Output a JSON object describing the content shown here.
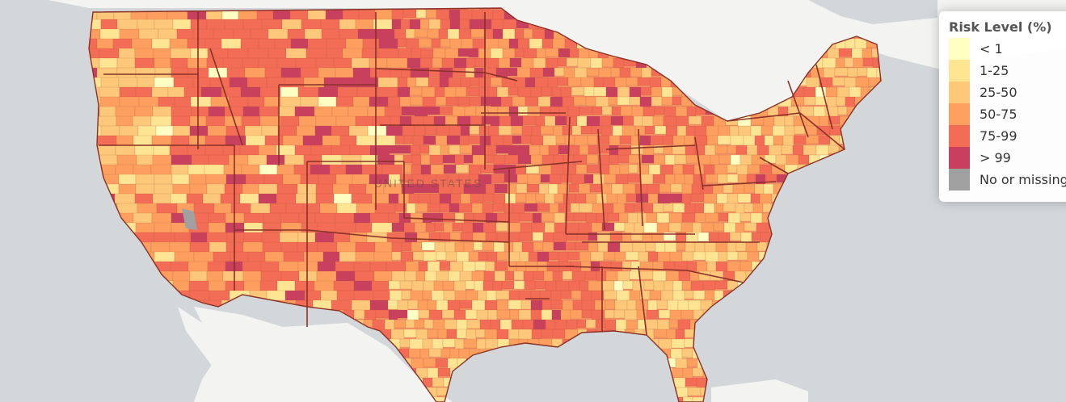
{
  "map": {
    "country_label": "UNITED STATES",
    "colors": {
      "water": "#d4d7da",
      "land": "#f3f3f1",
      "state_border": "#8a3128",
      "county_border": "#b65a3e"
    }
  },
  "legend": {
    "title": "Risk Level (%)",
    "items": [
      {
        "label": "< 1",
        "color": "#ffffc4"
      },
      {
        "label": "1-25",
        "color": "#fee594"
      },
      {
        "label": "25-50",
        "color": "#fdc87a"
      },
      {
        "label": "50-75",
        "color": "#fc9f5f"
      },
      {
        "label": "75-99",
        "color": "#f36c55"
      },
      {
        "label": "> 99",
        "color": "#c9405e"
      },
      {
        "label": "No or missing data",
        "color": "#a0a0a0"
      }
    ]
  }
}
